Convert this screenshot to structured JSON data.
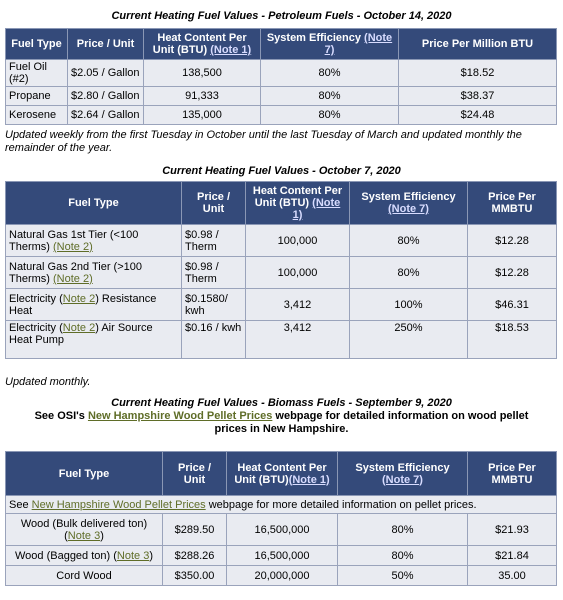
{
  "t1": {
    "caption": "Current Heating Fuel Values - Petroleum Fuels - October 14, 2020",
    "h_fuel": "Fuel Type",
    "h_price": "Price / Unit",
    "h_heat": "Heat Content Per Unit (BTU) ",
    "h_heat_note": "(Note 1)",
    "h_eff": "System Efficiency ",
    "h_eff_note": "(Note 7)",
    "h_ppm": "Price Per Million BTU",
    "rows": [
      {
        "fuel": "Fuel Oil (#2)",
        "price": "$2.05 / Gallon",
        "heat": "138,500",
        "eff": "80%",
        "ppm": "$18.52"
      },
      {
        "fuel": "Propane",
        "price": "$2.80 / Gallon",
        "heat": "91,333",
        "eff": "80%",
        "ppm": "$38.37"
      },
      {
        "fuel": "Kerosene",
        "price": "$2.64 / Gallon",
        "heat": "135,000",
        "eff": "80%",
        "ppm": "$24.48"
      }
    ]
  },
  "note1": "Updated weekly from the first Tuesday in October until the last Tuesday of March and updated monthly the remainder of the year.",
  "t2": {
    "caption": "Current Heating Fuel Values - October 7, 2020",
    "h_fuel": "Fuel Type",
    "h_price": "Price / Unit",
    "h_heat": "Heat Content Per Unit (BTU) ",
    "h_heat_note": "(Note 1)",
    "h_eff": "System Efficiency ",
    "h_eff_note": "(Note 7)",
    "h_ppm": "Price Per MMBTU",
    "rows": [
      {
        "fuel_a": "Natural Gas 1st Tier (<100 Therms) ",
        "note": "(Note 2)",
        "fuel_b": "",
        "price": "$0.98 / Therm",
        "heat": "100,000",
        "eff": "80%",
        "ppm": "$12.28"
      },
      {
        "fuel_a": "Natural Gas 2nd Tier (>100 Therms) ",
        "note": "(Note 2)",
        "fuel_b": "",
        "price": "$0.98 / Therm",
        "heat": "100,000",
        "eff": "80%",
        "ppm": "$12.28"
      },
      {
        "fuel_a": "Electricity (",
        "note": "Note 2",
        "fuel_b": ") Resistance Heat",
        "price": "$0.1580/ kwh",
        "heat": "3,412",
        "eff": "100%",
        "ppm": "$46.31"
      },
      {
        "fuel_a": "Electricity (",
        "note": "Note 2",
        "fuel_b": ") Air Source Heat Pump",
        "price": "$0.16 / kwh",
        "heat": "3,412",
        "eff": "250%",
        "ppm": "$18.53"
      }
    ]
  },
  "note2": "Updated monthly.",
  "t3": {
    "caption": "Current Heating Fuel Values - Biomass Fuels - September 9, 2020",
    "sub_a": "See OSI's ",
    "sub_link": "New Hampshire Wood Pellet Prices",
    "sub_b": " webpage for detailed information on wood pellet prices in New Hampshire.",
    "h_fuel": "Fuel Type",
    "h_price": "Price / Unit",
    "h_heat": "Heat Content Per Unit (BTU)",
    "h_heat_note": "(Note 1)",
    "h_eff": "System Efficiency ",
    "h_eff_note": "(Note 7)",
    "h_ppm": "Price Per MMBTU",
    "info_a": "See ",
    "info_link": "New Hampshire Wood Pellet Prices",
    "info_b": " webpage for more detailed information on pellet prices.",
    "rows": [
      {
        "fuel_a": "Wood (Bulk delivered ton) (",
        "note": "Note 3",
        "fuel_b": ")",
        "price": "$289.50",
        "heat": "16,500,000",
        "eff": "80%",
        "ppm": "$21.93"
      },
      {
        "fuel_a": "Wood (Bagged ton) (",
        "note": "Note 3",
        "fuel_b": ")",
        "price": "$288.26",
        "heat": "16,500,000",
        "eff": "80%",
        "ppm": "$21.84"
      },
      {
        "fuel_a": "Cord Wood",
        "note": "",
        "fuel_b": "",
        "price": "$350.00",
        "heat": "20,000,000",
        "eff": "50%",
        "ppm": "35.00"
      }
    ]
  }
}
